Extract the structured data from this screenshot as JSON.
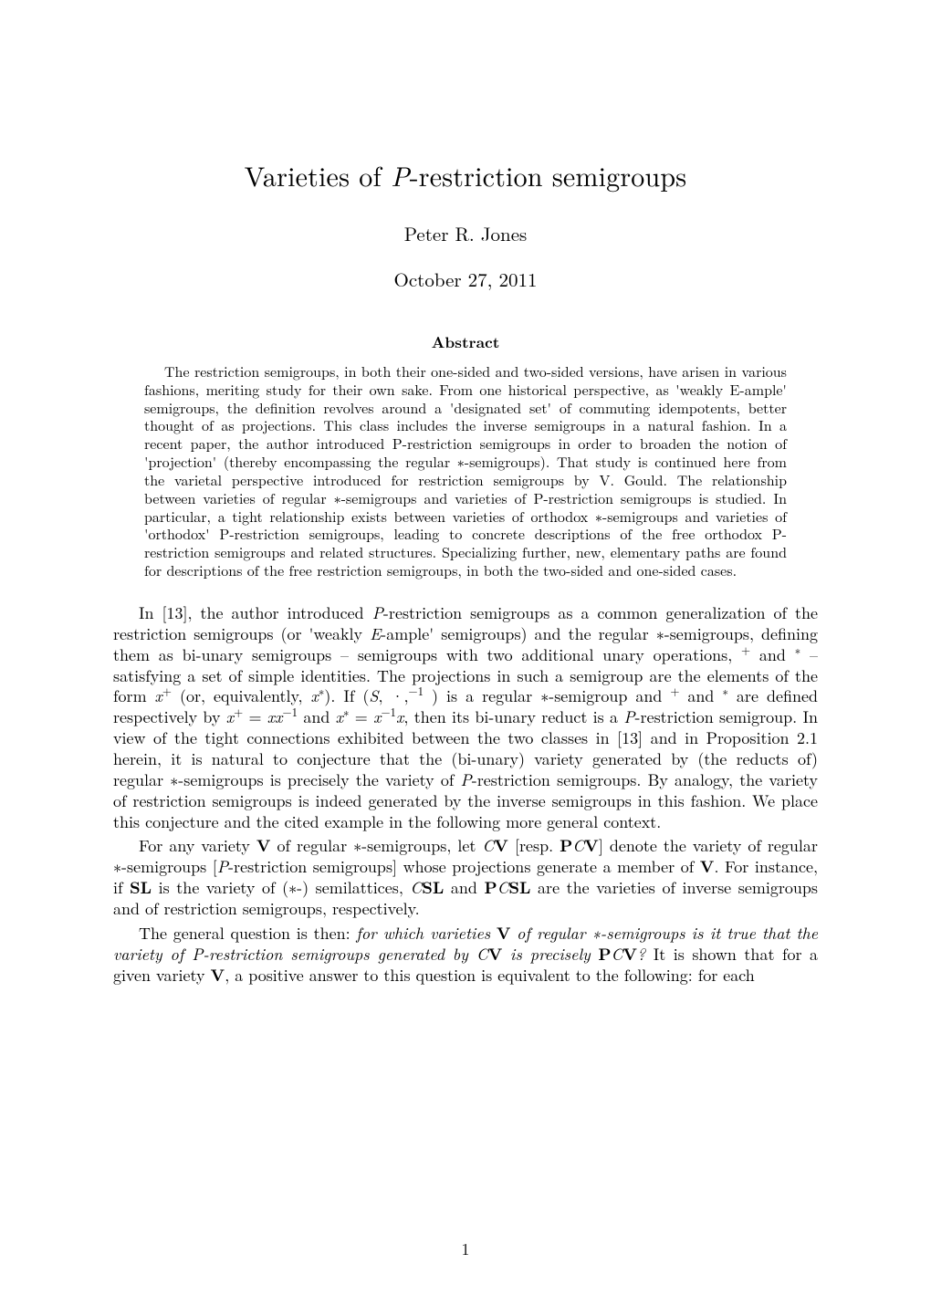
{
  "title_pre": "Varieties of ",
  "title_ital": "P",
  "title_post": "-restriction semigroups",
  "author": "Peter R. Jones",
  "date": "October 27, 2011",
  "abstract_heading": "Abstract",
  "abstract": "The restriction semigroups, in both their one-sided and two-sided versions, have arisen in various fashions, meriting study for their own sake. From one historical perspective, as 'weakly E-ample' semigroups, the definition revolves around a 'designated set' of commuting idempotents, better thought of as projections. This class includes the inverse semigroups in a natural fashion. In a recent paper, the author introduced P-restriction semigroups in order to broaden the notion of 'projection' (thereby encompassing the regular ∗-semigroups). That study is continued here from the varietal perspective introduced for restriction semigroups by V. Gould. The relationship between varieties of regular ∗-semigroups and varieties of P-restriction semigroups is studied. In particular, a tight relationship exists between varieties of orthodox ∗-semigroups and varieties of 'orthodox' P-restriction semigroups, leading to concrete descriptions of the free orthodox P-restriction semigroups and related structures. Specializing further, new, elementary paths are found for descriptions of the free restriction semigroups, in both the two-sided and one-sided cases.",
  "para1_html": "In [13], the author introduced <span class=\"ital\">P</span>-restriction semigroups as a common generalization of the restriction semigroups (or 'weakly <span class=\"ital\">E</span>-ample' semigroups) and the regular ∗-semigroups, defining them as bi-unary semigroups – semigroups with two additional unary operations, <sup>+</sup> and <sup>∗</sup> – satisfying a set of simple identities. The projections in such a semigroup are the elements of the form <span class=\"ital\">x</span><sup>+</sup> (or, equivalently, <span class=\"ital\">x</span><sup>∗</sup>). If (<span class=\"ital\">S</span>, ·,<sup>−1</sup> ) is a regular ∗-semigroup and <sup>+</sup> and <sup>∗</sup> are defined respectively by <span class=\"ital\">x</span><sup>+</sup> = <span class=\"ital\">xx</span><sup>−1</sup> and <span class=\"ital\">x</span><sup>∗</sup> = <span class=\"ital\">x</span><sup>−1</sup><span class=\"ital\">x</span>, then its bi-unary reduct is a <span class=\"ital\">P</span>-restriction semigroup. In view of the tight connections exhibited between the two classes in [13] and in Proposition 2.1 herein, it is natural to conjecture that the (bi-unary) variety generated by (the reducts of) regular ∗-semigroups is precisely the variety of <span class=\"ital\">P</span>-restriction semigroups. By analogy, the variety of restriction semigroups is indeed generated by the inverse semigroups in this fashion. We place this conjecture and the cited example in the following more general context.",
  "para2_html": "For any variety <span class=\"bold\">V</span> of regular ∗-semigroups, let <span class=\"ital\">C</span><span class=\"bold\">V</span> [resp. <span class=\"bold\">P</span><span class=\"ital\">C</span><span class=\"bold\">V</span>] denote the variety of regular ∗-semigroups [<span class=\"ital\">P</span>-restriction semigroups] whose projections generate a member of <span class=\"bold\">V</span>. For instance, if <span class=\"bold\">SL</span> is the variety of (∗-) semilattices, <span class=\"ital\">C</span><span class=\"bold\">SL</span> and <span class=\"bold\">P</span><span class=\"ital\">C</span><span class=\"bold\">SL</span> are the varieties of inverse semigroups and of restriction semigroups, respectively.",
  "para3_html": "The general question is then: <span class=\"ital\">for which varieties</span> <span class=\"bold\">V</span> <span class=\"ital\">of regular ∗-semigroups is it true that the variety of P-restriction semigroups generated by C</span><span class=\"bold\">V</span> <span class=\"ital\">is precisely</span> <span class=\"bold\">P</span><span class=\"ital\">C</span><span class=\"bold\">V</span><span class=\"ital\">?</span> It is shown that for a given variety <span class=\"bold\">V</span>, a positive answer to this question is equivalent to the following: for each",
  "pagenum": "1"
}
